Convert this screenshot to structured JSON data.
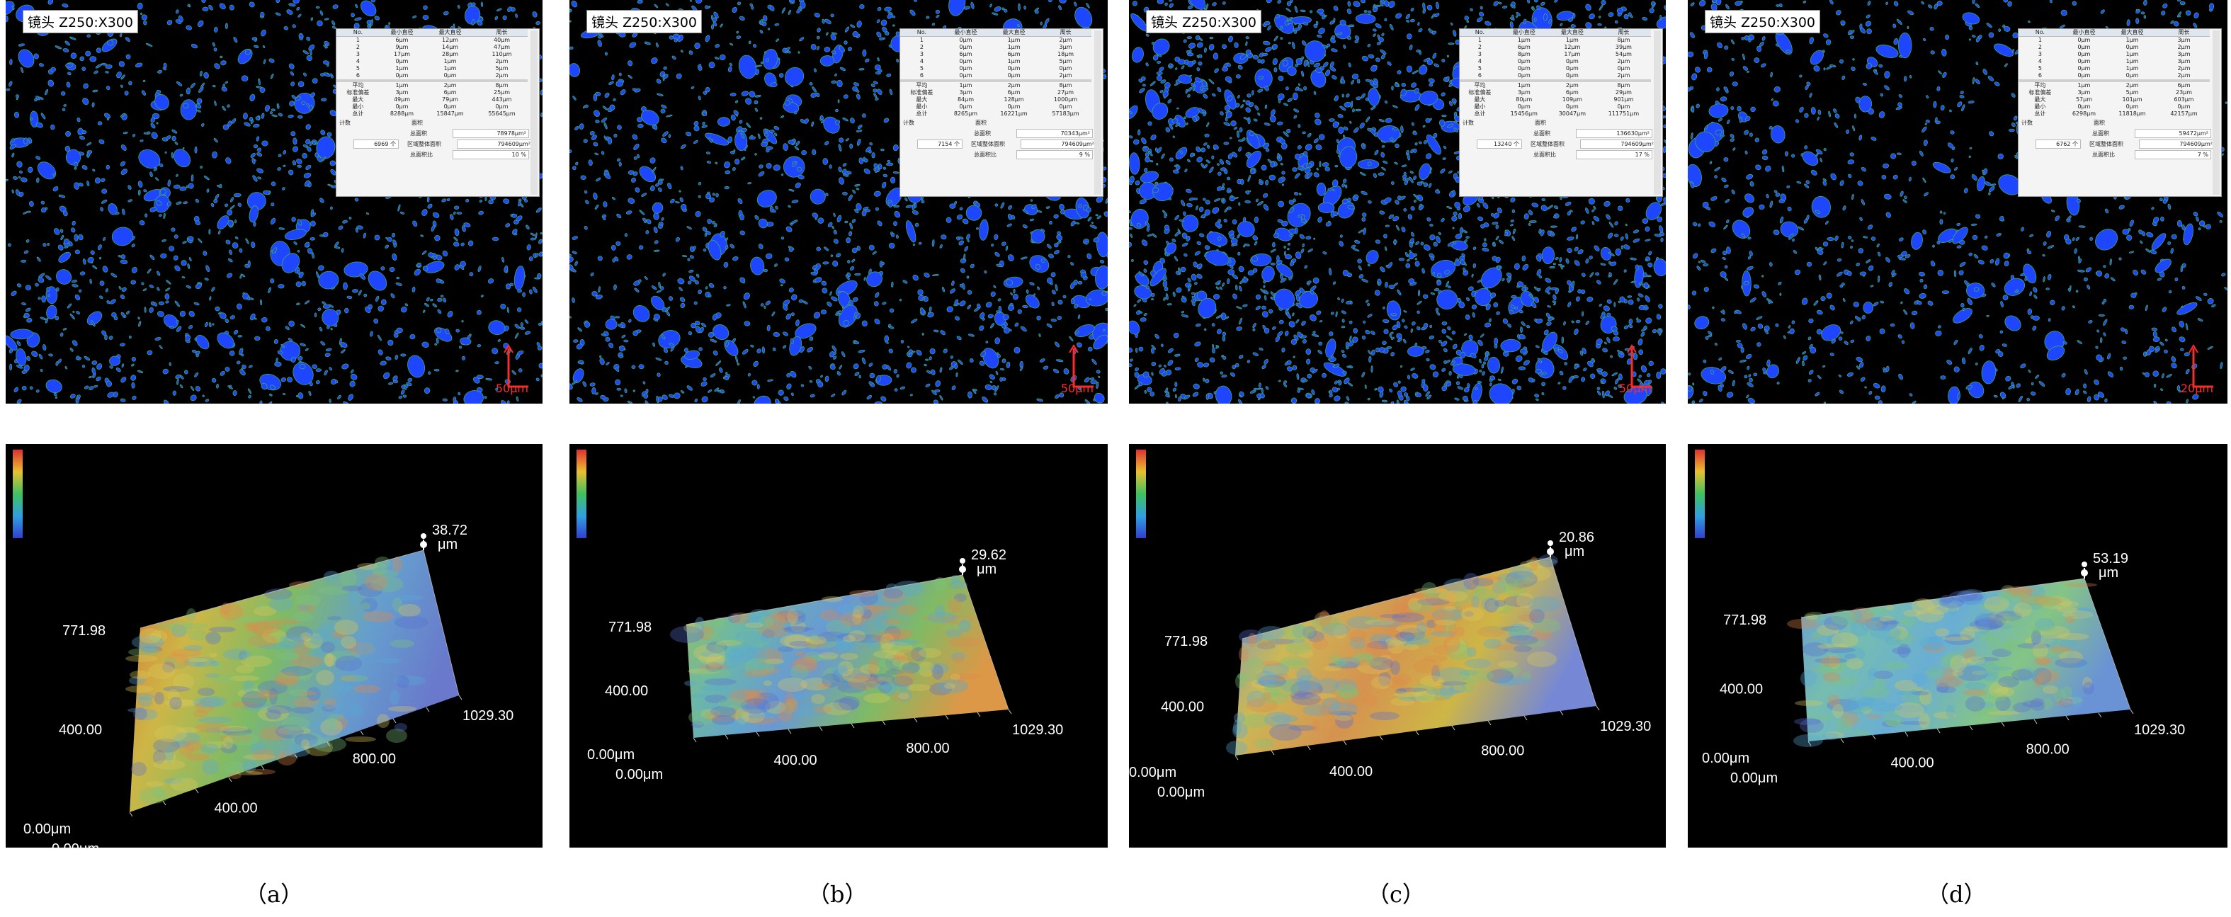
{
  "panels": [
    {
      "id": "a",
      "lens_label": "镜头 Z250:X300",
      "scale_text": "50μm",
      "caption": "（a）",
      "stats_header": [
        "No.",
        "最小直径",
        "最大直径",
        "周长"
      ],
      "stats_rows": [
        [
          "1",
          "6μm",
          "12μm",
          "40μm"
        ],
        [
          "2",
          "9μm",
          "14μm",
          "47μm"
        ],
        [
          "3",
          "17μm",
          "28μm",
          "110μm"
        ],
        [
          "4",
          "0μm",
          "1μm",
          "2μm"
        ],
        [
          "5",
          "1μm",
          "1μm",
          "5μm"
        ],
        [
          "6",
          "0μm",
          "0μm",
          "2μm"
        ]
      ],
      "summary_rows": [
        [
          "平均",
          "1μm",
          "2μm",
          "8μm"
        ],
        [
          "标准偏差",
          "3μm",
          "6μm",
          "25μm"
        ],
        [
          "最大",
          "49μm",
          "79μm",
          "443μm"
        ],
        [
          "最小",
          "0μm",
          "0μm",
          "0μm"
        ],
        [
          "总计",
          "8288μm",
          "15847μm",
          "55645μm"
        ]
      ],
      "count_label": "计数",
      "area_label": "面积",
      "total_area_label": "总面积",
      "total_area_value": "78978μm²",
      "count_value": "6969 个",
      "region_area_label": "区域整体面积",
      "region_area_value": "794609μm²",
      "area_ratio_label": "总面积比",
      "area_ratio_value": "10 %",
      "surface": {
        "z_top": "38.72",
        "z_unit": "μm",
        "y_max": "771.98",
        "y_mid": "400.00",
        "x_mid1": "400.00",
        "x_mid2": "800.00",
        "x_max": "1029.30",
        "origin_y": "0.00μm",
        "origin_x": "0.00μm"
      }
    },
    {
      "id": "b",
      "lens_label": "镜头 Z250:X300",
      "scale_text": "50μm",
      "caption": "（b）",
      "stats_header": [
        "No.",
        "最小直径",
        "最大直径",
        "周长"
      ],
      "stats_rows": [
        [
          "1",
          "0μm",
          "1μm",
          "2μm"
        ],
        [
          "2",
          "0μm",
          "1μm",
          "3μm"
        ],
        [
          "3",
          "6μm",
          "6μm",
          "18μm"
        ],
        [
          "4",
          "0μm",
          "1μm",
          "5μm"
        ],
        [
          "5",
          "0μm",
          "0μm",
          "0μm"
        ],
        [
          "6",
          "0μm",
          "0μm",
          "2μm"
        ]
      ],
      "summary_rows": [
        [
          "平均",
          "1μm",
          "2μm",
          "8μm"
        ],
        [
          "标准偏差",
          "3μm",
          "6μm",
          "27μm"
        ],
        [
          "最大",
          "84μm",
          "128μm",
          "1000μm"
        ],
        [
          "最小",
          "0μm",
          "0μm",
          "0μm"
        ],
        [
          "总计",
          "8265μm",
          "16221μm",
          "57183μm"
        ]
      ],
      "count_label": "计数",
      "area_label": "面积",
      "total_area_label": "总面积",
      "total_area_value": "70343μm²",
      "count_value": "7154 个",
      "region_area_label": "区域整体面积",
      "region_area_value": "794609μm²",
      "area_ratio_label": "总面积比",
      "area_ratio_value": "9 %",
      "surface": {
        "z_top": "29.62",
        "z_unit": "μm",
        "y_max": "771.98",
        "y_mid": "400.00",
        "x_mid1": "400.00",
        "x_mid2": "800.00",
        "x_max": "1029.30",
        "origin_y": "0.00μm",
        "origin_x": "0.00μm"
      }
    },
    {
      "id": "c",
      "lens_label": "镜头 Z250:X300",
      "scale_text": "50μm",
      "caption": "（c）",
      "stats_header": [
        "No.",
        "最小直径",
        "最大直径",
        "周长"
      ],
      "stats_rows": [
        [
          "1",
          "1μm",
          "1μm",
          "8μm"
        ],
        [
          "2",
          "6μm",
          "12μm",
          "39μm"
        ],
        [
          "3",
          "8μm",
          "17μm",
          "54μm"
        ],
        [
          "4",
          "0μm",
          "0μm",
          "2μm"
        ],
        [
          "5",
          "0μm",
          "0μm",
          "0μm"
        ],
        [
          "6",
          "0μm",
          "0μm",
          "2μm"
        ]
      ],
      "summary_rows": [
        [
          "平均",
          "1μm",
          "2μm",
          "8μm"
        ],
        [
          "标准偏差",
          "3μm",
          "6μm",
          "29μm"
        ],
        [
          "最大",
          "80μm",
          "109μm",
          "901μm"
        ],
        [
          "最小",
          "0μm",
          "0μm",
          "0μm"
        ],
        [
          "总计",
          "15456μm",
          "30047μm",
          "111751μm"
        ]
      ],
      "count_label": "计数",
      "area_label": "面积",
      "total_area_label": "总面积",
      "total_area_value": "136630μm²",
      "count_value": "13240 个",
      "region_area_label": "区域整体面积",
      "region_area_value": "794609μm²",
      "area_ratio_label": "总面积比",
      "area_ratio_value": "17 %",
      "surface": {
        "z_top": "20.86",
        "z_unit": "μm",
        "y_max": "771.98",
        "y_mid": "400.00",
        "x_mid1": "400.00",
        "x_mid2": "800.00",
        "x_max": "1029.30",
        "origin_y": "0.00μm",
        "origin_x": "0.00μm"
      }
    },
    {
      "id": "d",
      "lens_label": "镜头 Z250:X300",
      "scale_text": "20μm",
      "caption": "（d）",
      "stats_header": [
        "No.",
        "最小直径",
        "最大直径",
        "周长"
      ],
      "stats_rows": [
        [
          "1",
          "0μm",
          "1μm",
          "3μm"
        ],
        [
          "2",
          "0μm",
          "0μm",
          "2μm"
        ],
        [
          "3",
          "0μm",
          "1μm",
          "3μm"
        ],
        [
          "4",
          "0μm",
          "1μm",
          "3μm"
        ],
        [
          "5",
          "0μm",
          "1μm",
          "2μm"
        ],
        [
          "6",
          "0μm",
          "0μm",
          "2μm"
        ]
      ],
      "summary_rows": [
        [
          "平均",
          "1μm",
          "2μm",
          "6μm"
        ],
        [
          "标准偏差",
          "3μm",
          "5μm",
          "23μm"
        ],
        [
          "最大",
          "57μm",
          "101μm",
          "603μm"
        ],
        [
          "最小",
          "0μm",
          "0μm",
          "0μm"
        ],
        [
          "总计",
          "6298μm",
          "11818μm",
          "42157μm"
        ]
      ],
      "count_label": "计数",
      "area_label": "面积",
      "total_area_label": "总面积",
      "total_area_value": "59472μm²",
      "count_value": "6762 个",
      "region_area_label": "区域整体面积",
      "region_area_value": "794609μm²",
      "area_ratio_label": "总面积比",
      "area_ratio_value": "7 %",
      "surface": {
        "z_top": "53.19",
        "z_unit": "μm",
        "y_max": "771.98",
        "y_mid": "400.00",
        "x_mid1": "400.00",
        "x_mid2": "800.00",
        "x_max": "1029.30",
        "origin_y": "0.00μm",
        "origin_x": "0.00μm"
      }
    }
  ],
  "colors": {
    "background": "#000000",
    "particles": "#1e46ff",
    "scalebar": "#ff2a2a"
  }
}
